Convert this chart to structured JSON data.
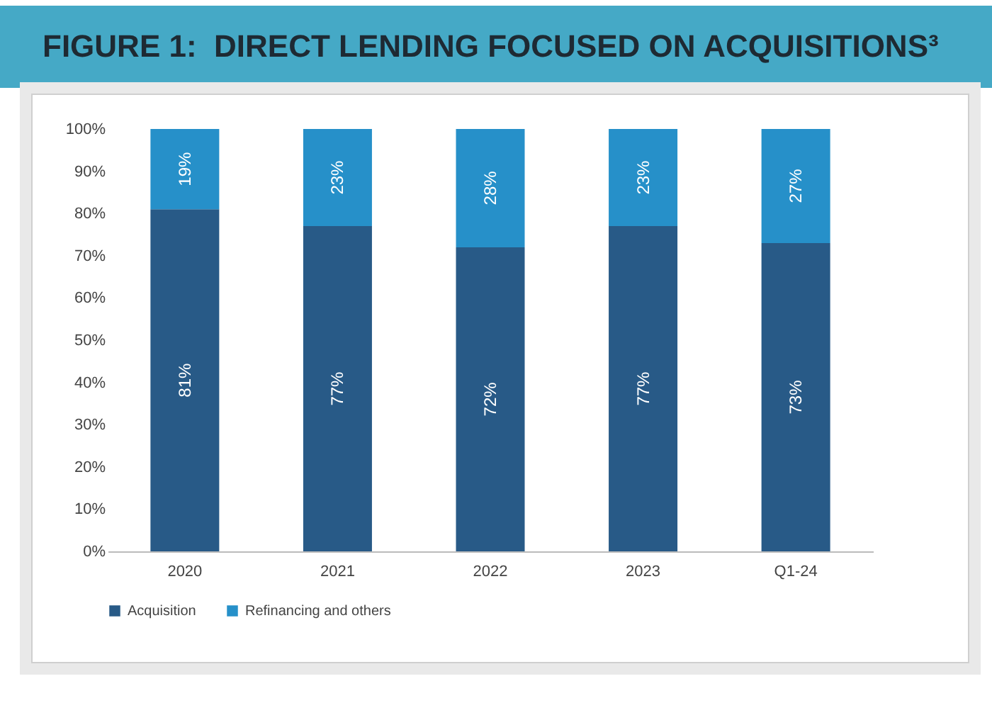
{
  "chart_data": {
    "type": "bar",
    "title": "FIGURE 1:  DIRECT LENDING FOCUSED ON ACQUISITIONS³",
    "categories": [
      "2020",
      "2021",
      "2022",
      "2023",
      "Q1-24"
    ],
    "stacked": true,
    "series": [
      {
        "name": "Acquisition",
        "color": "#285a87",
        "values": [
          81,
          77,
          72,
          77,
          73
        ],
        "value_labels": [
          "81%",
          "77%",
          "72%",
          "77%",
          "73%"
        ]
      },
      {
        "name": "Refinancing and others",
        "color": "#2690c9",
        "values": [
          19,
          23,
          28,
          23,
          27
        ],
        "value_labels": [
          "19%",
          "23%",
          "28%",
          "23%",
          "27%"
        ]
      }
    ],
    "ylim": [
      0,
      100
    ],
    "yticks": [
      {
        "value": 0,
        "label": "0%"
      },
      {
        "value": 10,
        "label": "10%"
      },
      {
        "value": 20,
        "label": "20%"
      },
      {
        "value": 30,
        "label": "30%"
      },
      {
        "value": 40,
        "label": "40%"
      },
      {
        "value": 50,
        "label": "50%"
      },
      {
        "value": 60,
        "label": "60%"
      },
      {
        "value": 70,
        "label": "70%"
      },
      {
        "value": 80,
        "label": "80%"
      },
      {
        "value": 90,
        "label": "90%"
      },
      {
        "value": 100,
        "label": "100%"
      }
    ],
    "grid": false,
    "legend": "bottom"
  }
}
